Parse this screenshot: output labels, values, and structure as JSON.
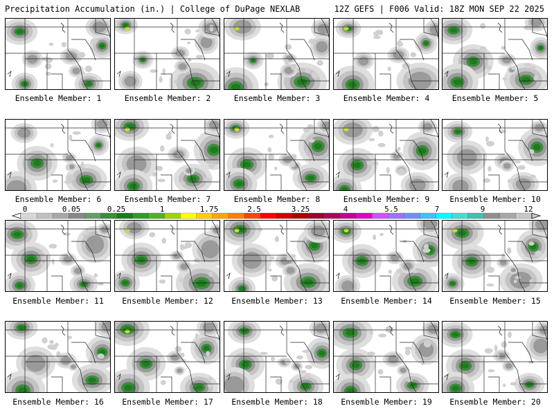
{
  "header": {
    "left": "Precipitation Accumulation (in.) | College of DuPage NEXLAB",
    "right": "12Z GEFS | F006 Valid: 18Z MON SEP 22 2025"
  },
  "panels": [
    {
      "label": "Ensemble Member: 1"
    },
    {
      "label": "Ensemble Member: 2"
    },
    {
      "label": "Ensemble Member: 3"
    },
    {
      "label": "Ensemble Member: 4"
    },
    {
      "label": "Ensemble Member: 5"
    },
    {
      "label": "Ensemble Member: 6"
    },
    {
      "label": "Ensemble Member: 7"
    },
    {
      "label": "Ensemble Member: 8"
    },
    {
      "label": "Ensemble Member: 9"
    },
    {
      "label": "Ensemble Member: 10"
    },
    {
      "label": "Ensemble Member: 11"
    },
    {
      "label": "Ensemble Member: 12"
    },
    {
      "label": "Ensemble Member: 13"
    },
    {
      "label": "Ensemble Member: 14"
    },
    {
      "label": "Ensemble Member: 15"
    },
    {
      "label": "Ensemble Member: 16"
    },
    {
      "label": "Ensemble Member: 17"
    },
    {
      "label": "Ensemble Member: 18"
    },
    {
      "label": "Ensemble Member: 19"
    },
    {
      "label": "Ensemble Member: 20"
    }
  ],
  "colorbar": {
    "tick_labels": [
      "0",
      "0.05",
      "0.25",
      "1",
      "1.75",
      "2.5",
      "3.25",
      "4",
      "5.5",
      "7",
      "9",
      "12"
    ],
    "colors": [
      "#d8d8d8",
      "#c0c0c0",
      "#a8a8a8",
      "#888888",
      "#6a9a6a",
      "#3c8c3c",
      "#1f7a1f",
      "#2f9a2f",
      "#55b020",
      "#9fd400",
      "#ffff00",
      "#ffd000",
      "#ffa500",
      "#ff7f00",
      "#ff4500",
      "#ff0000",
      "#d40000",
      "#b00000",
      "#a00030",
      "#b0005a",
      "#c8008c",
      "#e000c8",
      "#d050ff",
      "#a070ff",
      "#6f8fff",
      "#40c0ff",
      "#00ffff",
      "#40e0d0",
      "#40c0b0",
      "#909090",
      "#a8a8a8",
      "#c8c8c8"
    ]
  }
}
